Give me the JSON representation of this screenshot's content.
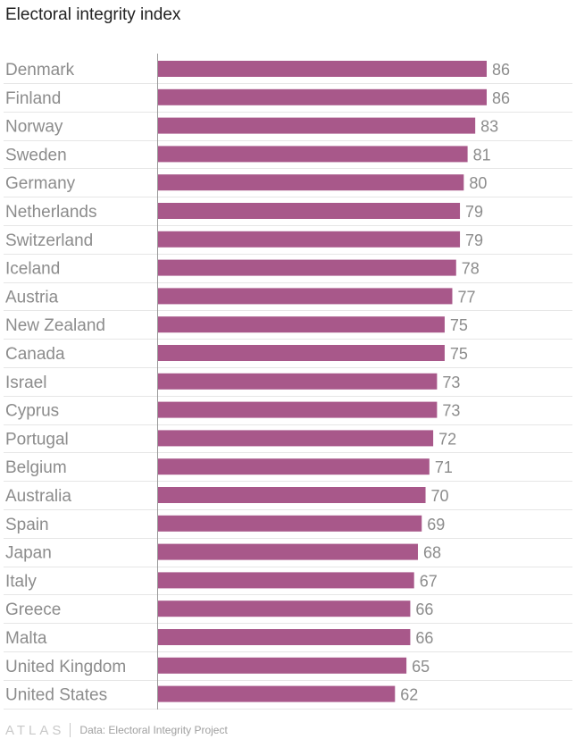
{
  "header": {
    "title": "Electoral integrity index"
  },
  "chart_data": {
    "type": "bar",
    "orientation": "horizontal",
    "title": "Electoral integrity index",
    "xlabel": "",
    "ylabel": "",
    "xlim": [
      0,
      86
    ],
    "grid": true,
    "color": "#a8588a",
    "categories": [
      "Denmark",
      "Finland",
      "Norway",
      "Sweden",
      "Germany",
      "Netherlands",
      "Switzerland",
      "Iceland",
      "Austria",
      "New Zealand",
      "Canada",
      "Israel",
      "Cyprus",
      "Portugal",
      "Belgium",
      "Australia",
      "Spain",
      "Japan",
      "Italy",
      "Greece",
      "Malta",
      "United Kingdom",
      "United States"
    ],
    "values": [
      86,
      86,
      83,
      81,
      80,
      79,
      79,
      78,
      77,
      75,
      75,
      73,
      73,
      72,
      71,
      70,
      69,
      68,
      67,
      66,
      66,
      65,
      62
    ]
  },
  "footer": {
    "logo": "ATLAS",
    "source": "Data: Electoral Integrity Project"
  }
}
